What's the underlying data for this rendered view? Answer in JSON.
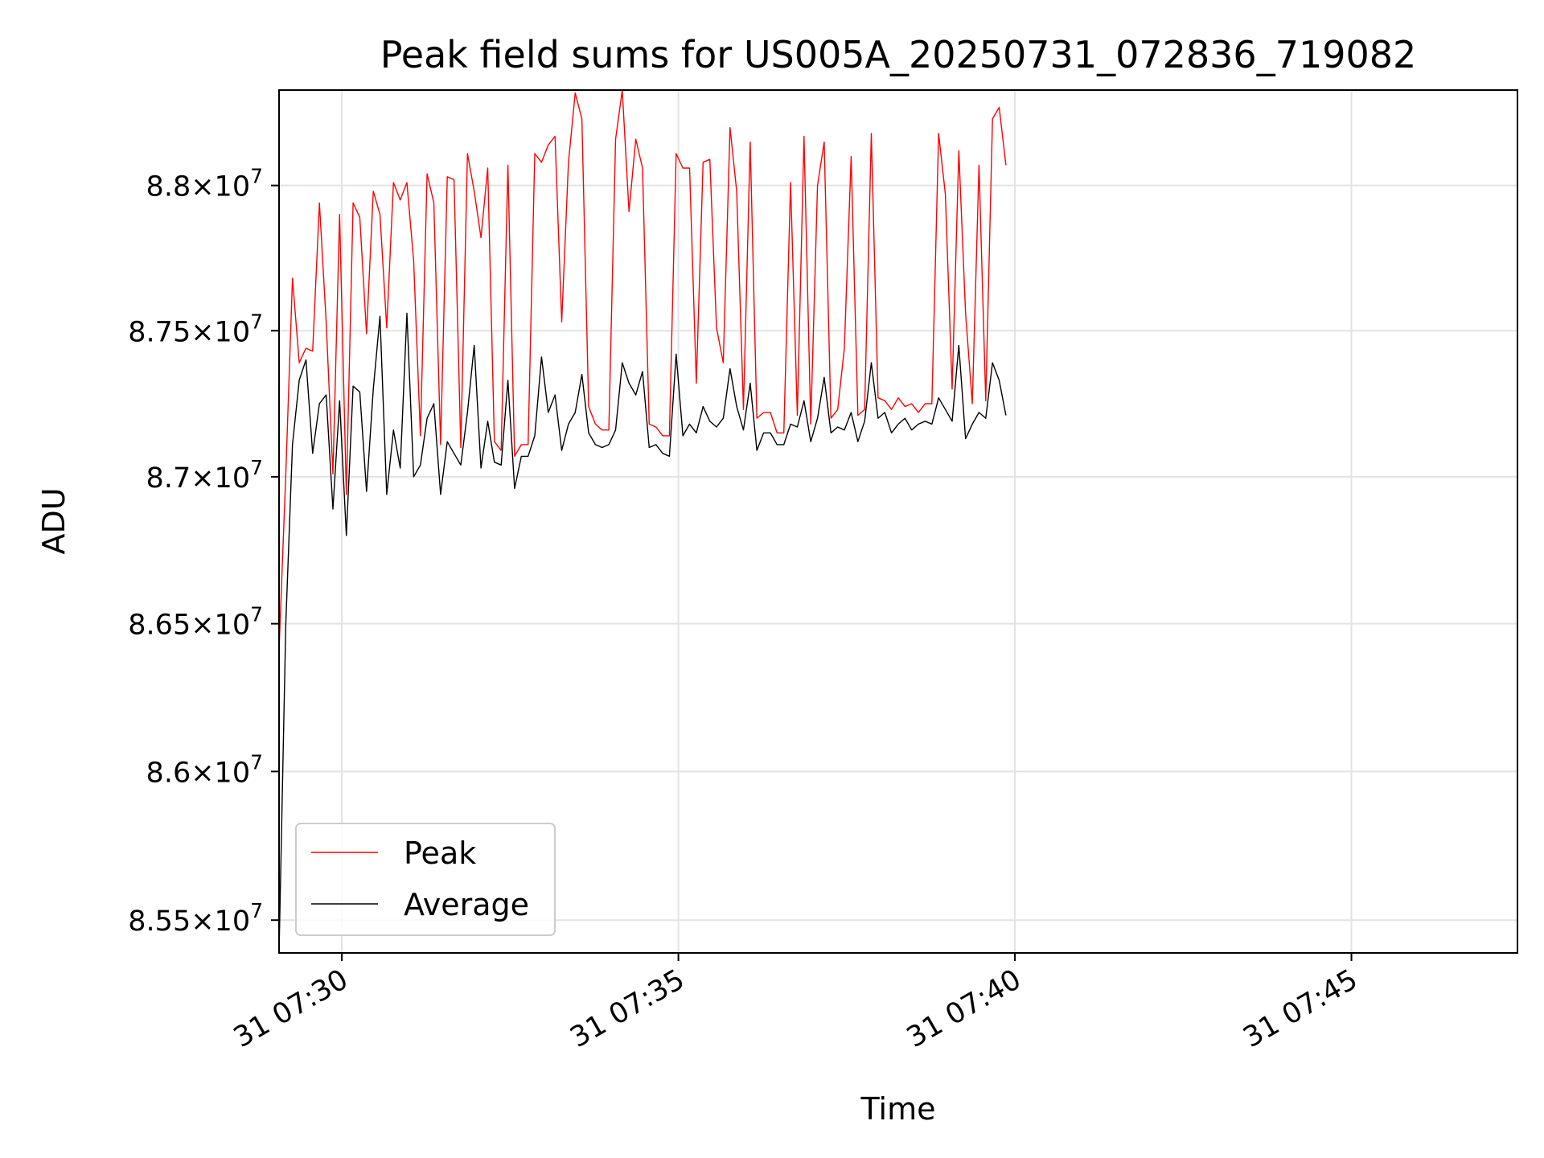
{
  "chart_data": {
    "type": "line",
    "title": "Peak field sums for US005A_20250731_072836_719082",
    "xlabel": "Time",
    "ylabel": "ADU",
    "x_start": "2025-07-31T07:29:04",
    "x_step_seconds": 6,
    "xlim": [
      "2025-07-31T07:29:04",
      "2025-07-31T07:47:28"
    ],
    "ylim": [
      85390000,
      88330000
    ],
    "yscale": "log",
    "grid": true,
    "legend_position": "lower-left",
    "x_ticks": [
      {
        "t": "2025-07-31T07:30:00",
        "label": "31 07:30"
      },
      {
        "t": "2025-07-31T07:35:00",
        "label": "31 07:35"
      },
      {
        "t": "2025-07-31T07:40:00",
        "label": "31 07:40"
      },
      {
        "t": "2025-07-31T07:45:00",
        "label": "31 07:45"
      }
    ],
    "y_ticks": [
      {
        "v": 85500000,
        "mantissa": "8.55",
        "base": "10",
        "exp": "7"
      },
      {
        "v": 86000000,
        "mantissa": "8.6",
        "base": "10",
        "exp": "7"
      },
      {
        "v": 86500000,
        "mantissa": "8.65",
        "base": "10",
        "exp": "7"
      },
      {
        "v": 87000000,
        "mantissa": "8.7",
        "base": "10",
        "exp": "7"
      },
      {
        "v": 87500000,
        "mantissa": "8.75",
        "base": "10",
        "exp": "7"
      },
      {
        "v": 88000000,
        "mantissa": "8.8",
        "base": "10",
        "exp": "7"
      }
    ],
    "series": [
      {
        "name": "Peak",
        "color": "#ff0000",
        "values": [
          86410000,
          87010000,
          87680000,
          87390000,
          87440000,
          87430000,
          87940000,
          87530000,
          87010000,
          87900000,
          86940000,
          87940000,
          87890000,
          87490000,
          87980000,
          87900000,
          87510000,
          88010000,
          87950000,
          88010000,
          87740000,
          87140000,
          88040000,
          87940000,
          87110000,
          88030000,
          88020000,
          87100000,
          88110000,
          87980000,
          87820000,
          88060000,
          87120000,
          87090000,
          88070000,
          87070000,
          87110000,
          87110000,
          88110000,
          88080000,
          88140000,
          88170000,
          87530000,
          88080000,
          88320000,
          88230000,
          87240000,
          87180000,
          87160000,
          87160000,
          88160000,
          88330000,
          87910000,
          88160000,
          88060000,
          87180000,
          87170000,
          87140000,
          87140000,
          88110000,
          88060000,
          88060000,
          87320000,
          88080000,
          88090000,
          87510000,
          87390000,
          88200000,
          87980000,
          87230000,
          88150000,
          87200000,
          87220000,
          87220000,
          87150000,
          87150000,
          88010000,
          87210000,
          88170000,
          87180000,
          88000000,
          88150000,
          87200000,
          87230000,
          87440000,
          88100000,
          87210000,
          87230000,
          88180000,
          87270000,
          87260000,
          87230000,
          87270000,
          87240000,
          87250000,
          87220000,
          87250000,
          87250000,
          88180000,
          87970000,
          87300000,
          88120000,
          87560000,
          87250000,
          88070000,
          87260000,
          88230000,
          88270000,
          88070000
        ]
      },
      {
        "name": "Average",
        "color": "#000000",
        "values": [
          85390000,
          86500000,
          87110000,
          87330000,
          87400000,
          87080000,
          87250000,
          87280000,
          86890000,
          87260000,
          86800000,
          87310000,
          87290000,
          86950000,
          87300000,
          87550000,
          86940000,
          87160000,
          87030000,
          87560000,
          87000000,
          87040000,
          87200000,
          87250000,
          86940000,
          87120000,
          87080000,
          87040000,
          87220000,
          87450000,
          87030000,
          87190000,
          87050000,
          87040000,
          87330000,
          86960000,
          87070000,
          87070000,
          87140000,
          87410000,
          87220000,
          87280000,
          87090000,
          87180000,
          87220000,
          87350000,
          87150000,
          87110000,
          87100000,
          87110000,
          87160000,
          87390000,
          87320000,
          87280000,
          87360000,
          87100000,
          87110000,
          87080000,
          87070000,
          87420000,
          87140000,
          87180000,
          87150000,
          87240000,
          87190000,
          87170000,
          87200000,
          87370000,
          87240000,
          87160000,
          87320000,
          87090000,
          87150000,
          87150000,
          87110000,
          87110000,
          87180000,
          87170000,
          87260000,
          87120000,
          87200000,
          87340000,
          87150000,
          87170000,
          87160000,
          87220000,
          87120000,
          87190000,
          87390000,
          87200000,
          87220000,
          87150000,
          87180000,
          87200000,
          87160000,
          87180000,
          87190000,
          87180000,
          87270000,
          87230000,
          87190000,
          87450000,
          87130000,
          87180000,
          87220000,
          87200000,
          87390000,
          87330000,
          87210000
        ]
      }
    ]
  }
}
